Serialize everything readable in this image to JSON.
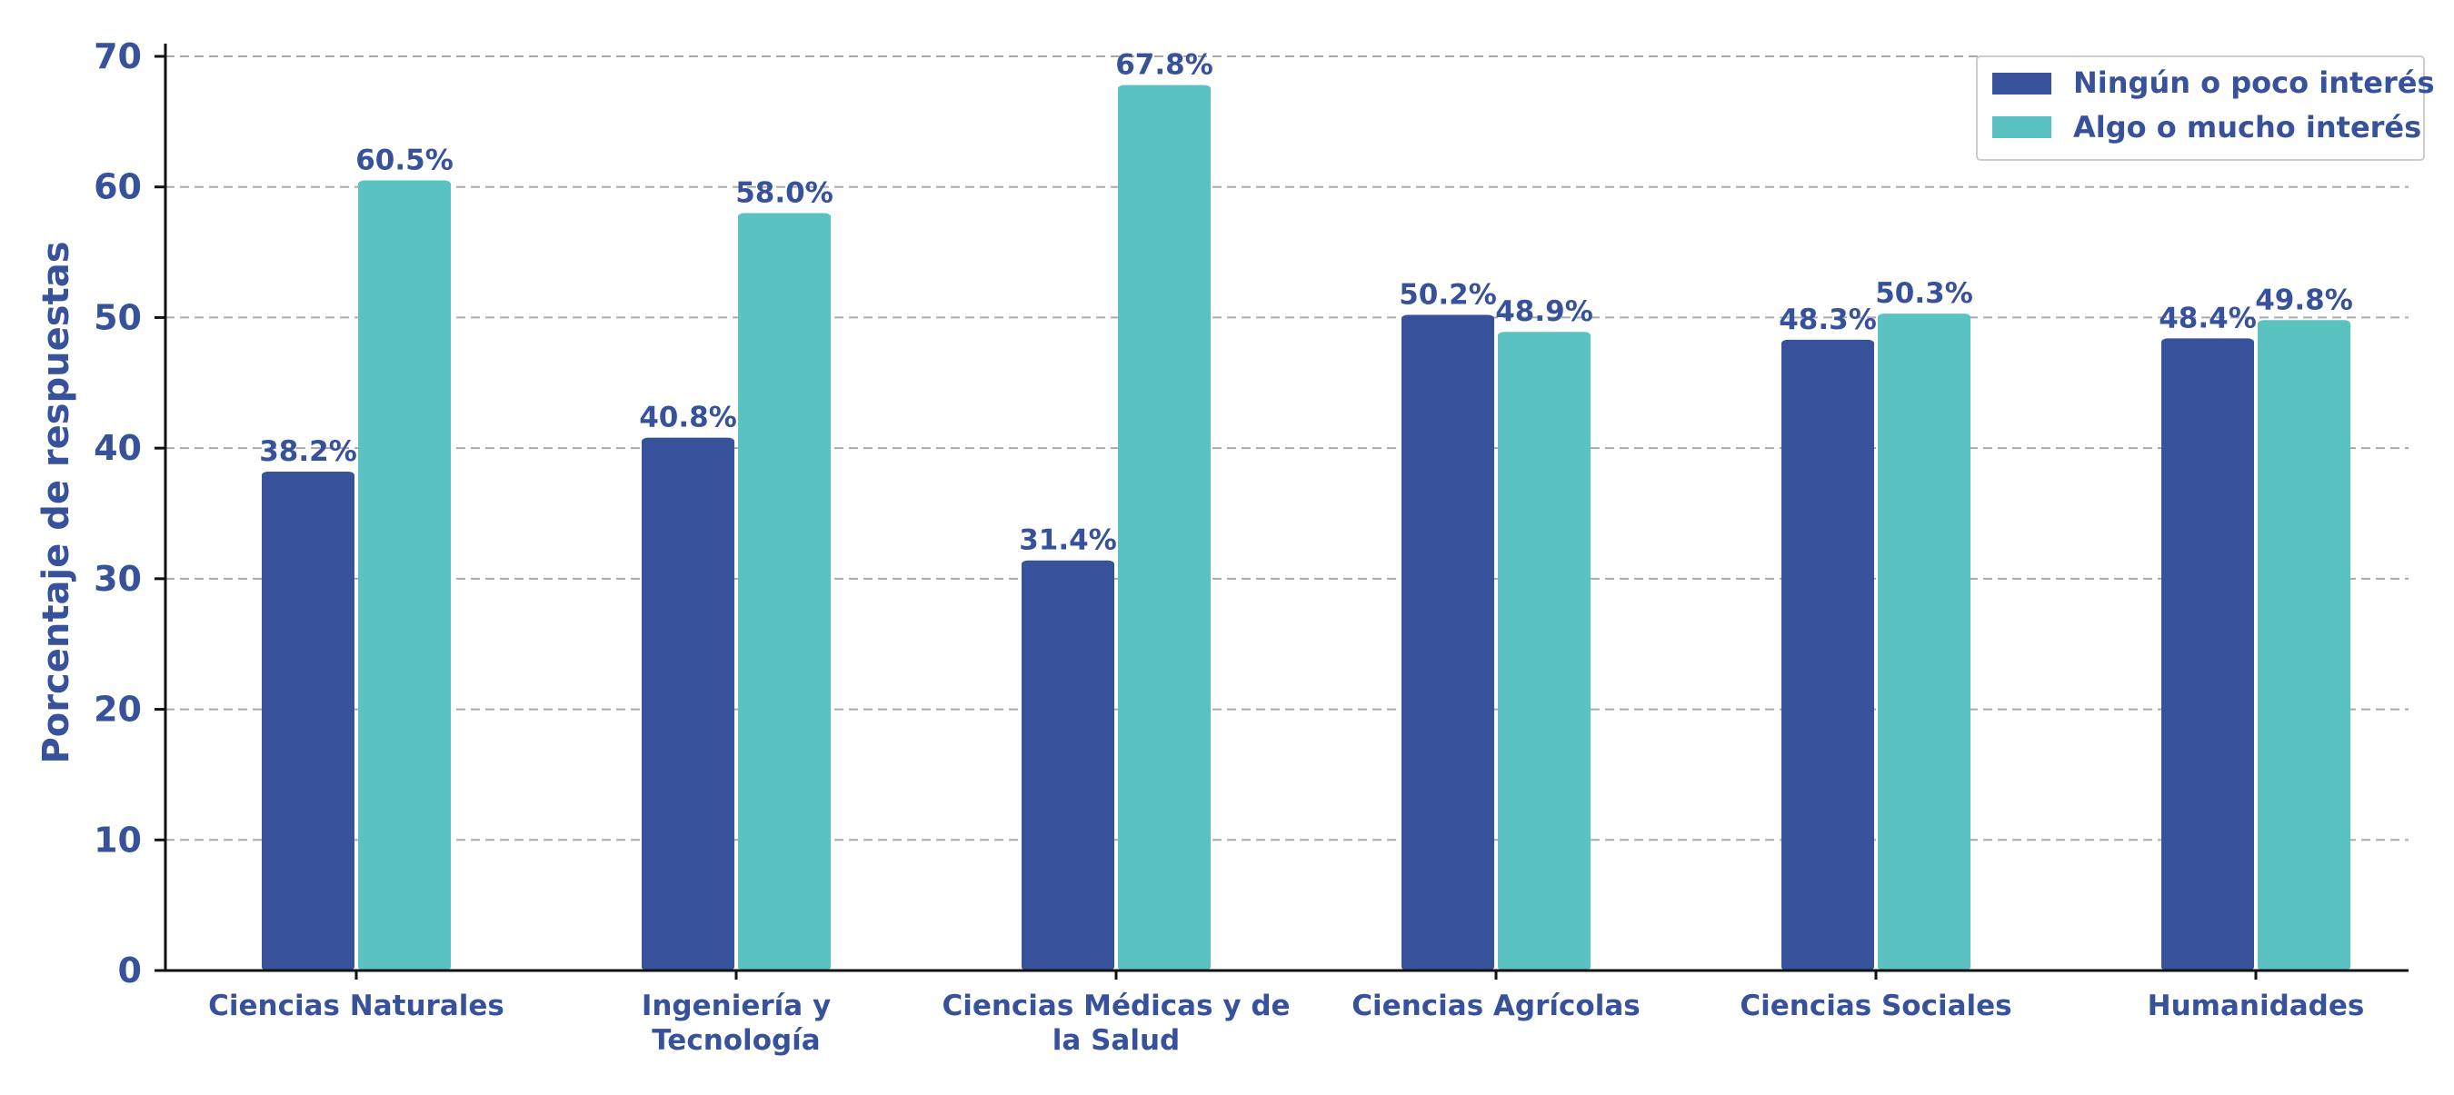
{
  "colors": {
    "series_1": "#37529a",
    "series_2": "#5ac3c1",
    "text": "#37529a",
    "grid": "#aaaaaa",
    "axis": "#111111"
  },
  "chart_data": {
    "type": "bar",
    "title": "",
    "xlabel": "",
    "ylabel": "Porcentaje de respuestas",
    "ylim": [
      0,
      70
    ],
    "yticks": [
      0,
      10,
      20,
      30,
      40,
      50,
      60,
      70
    ],
    "grid": "horizontal dashed",
    "legend_position": "top-right",
    "categories": [
      [
        "Ciencias Naturales"
      ],
      [
        "Ingeniería y",
        "Tecnología"
      ],
      [
        "Ciencias Médicas y de",
        "la Salud"
      ],
      [
        "Ciencias Agrícolas"
      ],
      [
        "Ciencias Sociales"
      ],
      [
        "Humanidades"
      ]
    ],
    "series": [
      {
        "name": "Ningún o poco interés",
        "values": [
          38.2,
          40.8,
          31.4,
          50.2,
          48.3,
          48.4
        ],
        "labels": [
          "38.2%",
          "40.8%",
          "31.4%",
          "50.2%",
          "48.3%",
          "48.4%"
        ]
      },
      {
        "name": "Algo o mucho interés",
        "values": [
          60.5,
          58.0,
          67.8,
          48.9,
          50.3,
          49.8
        ],
        "labels": [
          "60.5%",
          "58.0%",
          "67.8%",
          "48.9%",
          "50.3%",
          "49.8%"
        ]
      }
    ]
  }
}
